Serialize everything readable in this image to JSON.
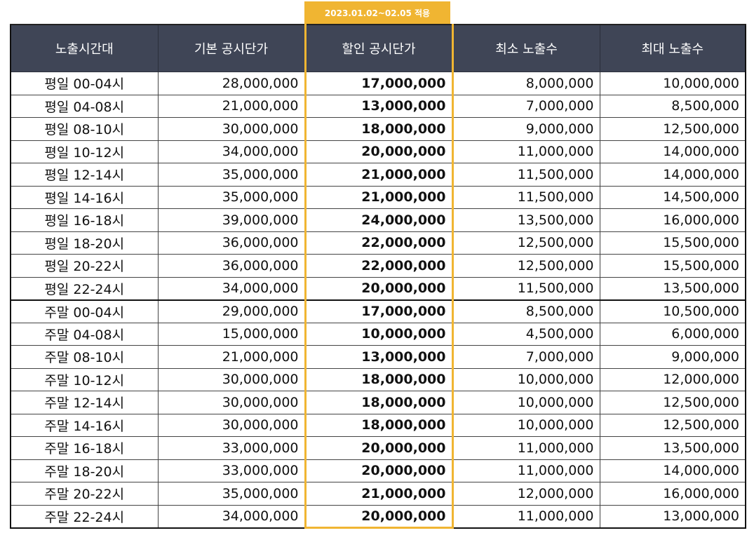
{
  "badge": "2023.01.02~02.05 적용",
  "headers": [
    "노출시간대",
    "기본 공시단가",
    "할인 공시단가",
    "최소 노출수",
    "최대 노출수"
  ],
  "rows": [
    [
      "평일 00-04시",
      "28,000,000",
      "17,000,000",
      "8,000,000",
      "10,000,000"
    ],
    [
      "평일 04-08시",
      "21,000,000",
      "13,000,000",
      "7,000,000",
      "8,500,000"
    ],
    [
      "평일 08-10시",
      "30,000,000",
      "18,000,000",
      "9,000,000",
      "12,500,000"
    ],
    [
      "평일 10-12시",
      "34,000,000",
      "20,000,000",
      "11,000,000",
      "14,000,000"
    ],
    [
      "평일 12-14시",
      "35,000,000",
      "21,000,000",
      "11,500,000",
      "14,000,000"
    ],
    [
      "평일 14-16시",
      "35,000,000",
      "21,000,000",
      "11,500,000",
      "14,500,000"
    ],
    [
      "평일 16-18시",
      "39,000,000",
      "24,000,000",
      "13,500,000",
      "16,000,000"
    ],
    [
      "평일 18-20시",
      "36,000,000",
      "22,000,000",
      "12,500,000",
      "15,500,000"
    ],
    [
      "평일 20-22시",
      "36,000,000",
      "22,000,000",
      "12,500,000",
      "15,500,000"
    ],
    [
      "평일 22-24시",
      "34,000,000",
      "20,000,000",
      "11,500,000",
      "13,500,000"
    ],
    [
      "주말 00-04시",
      "29,000,000",
      "17,000,000",
      "8,500,000",
      "10,500,000"
    ],
    [
      "주말 04-08시",
      "15,000,000",
      "10,000,000",
      "4,500,000",
      "6,000,000"
    ],
    [
      "주말 08-10시",
      "21,000,000",
      "13,000,000",
      "7,000,000",
      "9,000,000"
    ],
    [
      "주말 10-12시",
      "30,000,000",
      "18,000,000",
      "10,000,000",
      "12,000,000"
    ],
    [
      "주말 12-14시",
      "30,000,000",
      "18,000,000",
      "10,000,000",
      "12,500,000"
    ],
    [
      "주말 14-16시",
      "30,000,000",
      "18,000,000",
      "10,000,000",
      "12,500,000"
    ],
    [
      "주말 16-18시",
      "33,000,000",
      "20,000,000",
      "11,000,000",
      "13,500,000"
    ],
    [
      "주말 18-20시",
      "33,000,000",
      "20,000,000",
      "11,000,000",
      "14,000,000"
    ],
    [
      "주말 20-22시",
      "35,000,000",
      "21,000,000",
      "12,000,000",
      "16,000,000"
    ],
    [
      "주말 22-24시",
      "34,000,000",
      "20,000,000",
      "11,000,000",
      "13,000,000"
    ]
  ]
}
